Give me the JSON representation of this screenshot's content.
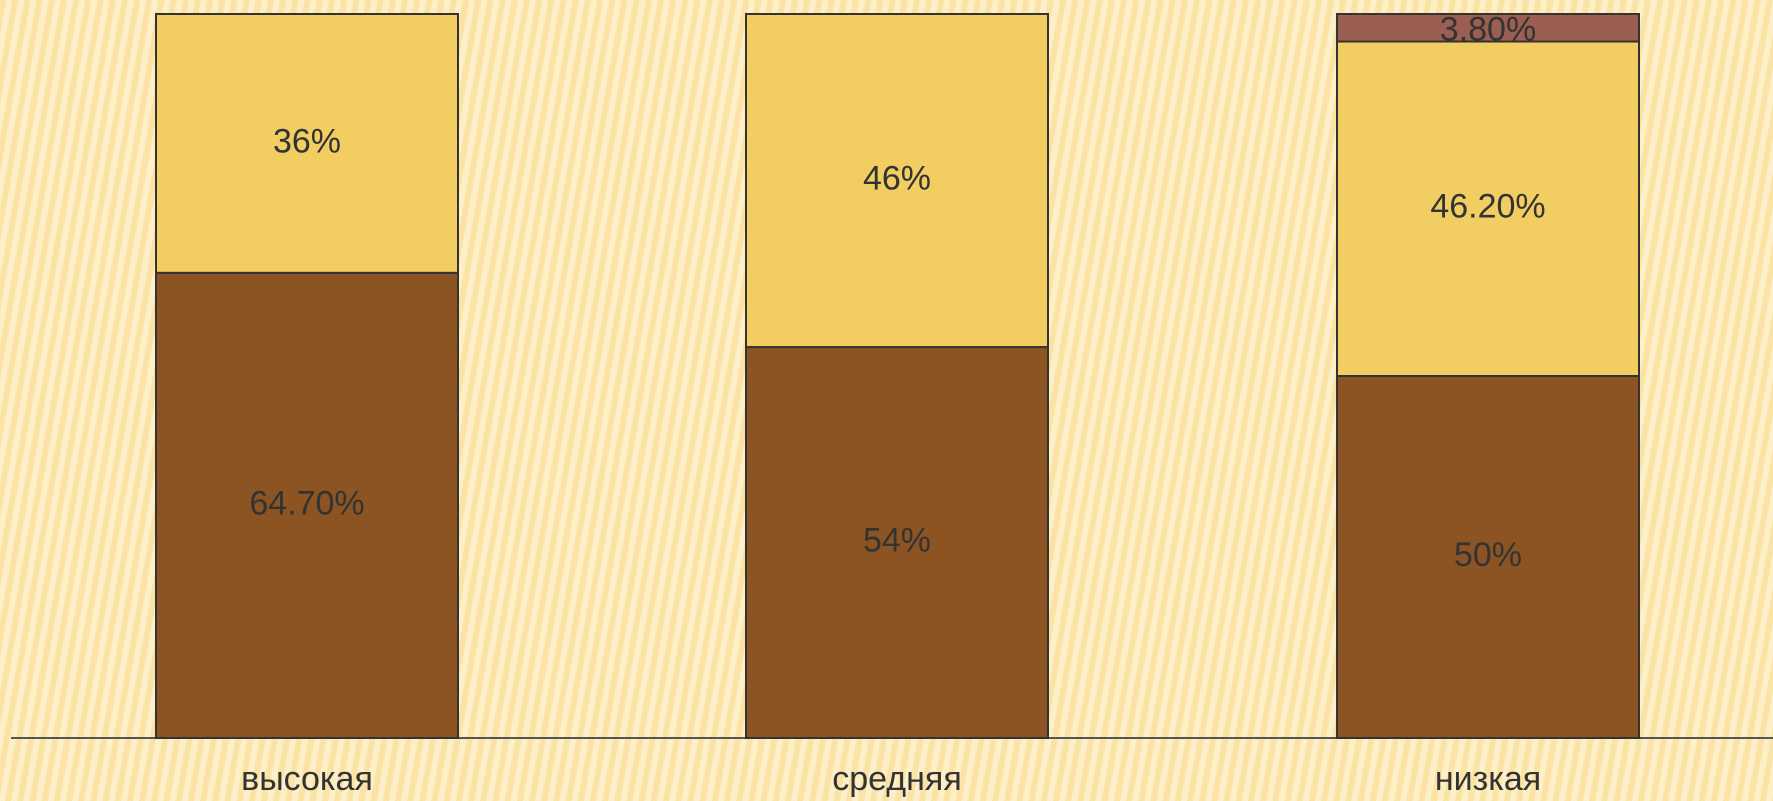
{
  "chart_data": {
    "type": "bar",
    "stacked": "percent",
    "categories": [
      "высокая",
      "средняя",
      "низкая"
    ],
    "series": [
      {
        "color": "#8c5422",
        "values": [
          64.7,
          54,
          50
        ],
        "value_labels": [
          "64.70%",
          "54%",
          "50%"
        ]
      },
      {
        "color": "#f2cd62",
        "values": [
          36,
          46,
          46.2
        ],
        "value_labels": [
          "36%",
          "46%",
          "46.20%"
        ]
      },
      {
        "color": "#9b5e52",
        "values": [
          null,
          null,
          3.8
        ],
        "value_labels": [
          null,
          null,
          "3.80%"
        ]
      }
    ]
  }
}
